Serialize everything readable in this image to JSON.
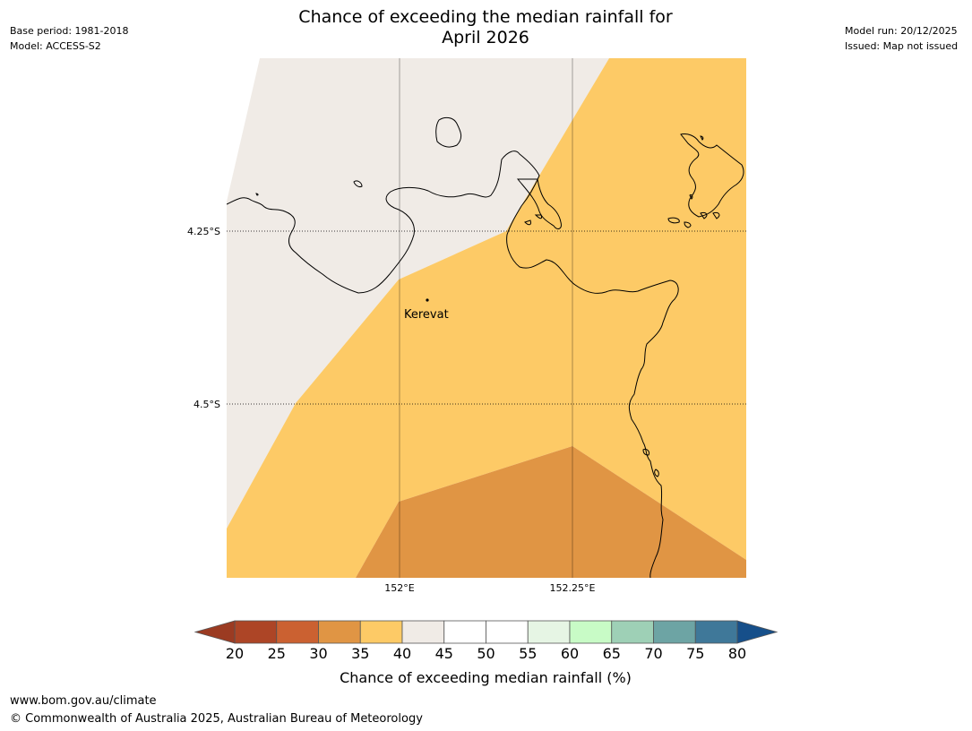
{
  "title": {
    "line1": "Chance of exceeding the median rainfall for",
    "line2": "April 2026"
  },
  "header_left": {
    "base_period": "Base period: 1981-2018",
    "model": "Model: ACCESS-S2"
  },
  "header_right": {
    "model_run": "Model run: 20/12/2025",
    "issued": "Issued: Map not issued"
  },
  "map": {
    "lat_labels": [
      "4.25°S",
      "4.5°S"
    ],
    "lon_labels": [
      "152°E",
      "152.25°E"
    ],
    "place": "Kerevat",
    "zone_colors": {
      "40-45": "#f0ebe6",
      "35-40": "#fdca66",
      "30-35": "#e09544"
    },
    "coastline_color": "#000000",
    "gridline_color": "#000000"
  },
  "legend": {
    "title": "Chance of exceeding median rainfall (%)",
    "ticks": [
      "20",
      "25",
      "30",
      "35",
      "40",
      "45",
      "50",
      "55",
      "60",
      "65",
      "70",
      "75",
      "80"
    ],
    "low_extend_color": "#9b3b22",
    "high_extend_color": "#164f8a",
    "colors": [
      "#ad4526",
      "#cb6131",
      "#e09544",
      "#fdca66",
      "#f0ebe6",
      "#ffffff",
      "#ffffff",
      "#e6f5e4",
      "#c8fbc6",
      "#9ed0b6",
      "#6da4a4",
      "#3f7899"
    ]
  },
  "footer": {
    "url": "www.bom.gov.au/climate",
    "copyright": "© Commonwealth of Australia 2025, Australian Bureau of Meteorology"
  }
}
